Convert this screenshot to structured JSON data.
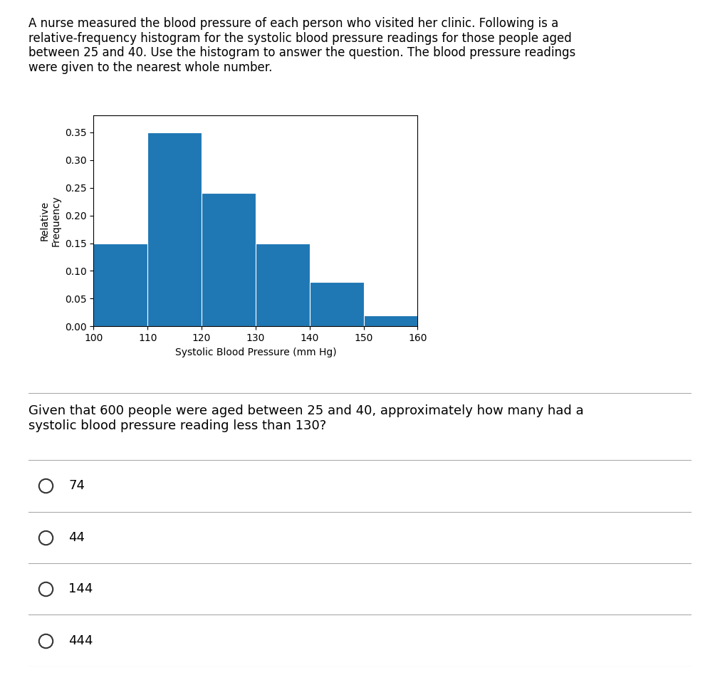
{
  "chart_data": {
    "type": "histogram",
    "title": "A nurse measured the blood pressure of each person who visited her clinic. Following is a\nrelative-frequency histogram for the systolic blood pressure readings for those people aged\nbetween 25 and 40. Use the histogram to answer the question. The blood pressure readings\nwere given to the nearest whole number.",
    "annotations": [
      "Given that 600 people were aged between 25 and 40, approximately how many had a\nsystolic blood pressure reading less than 130?",
      "74",
      "44",
      "144",
      "444"
    ],
    "bins": [
      100,
      110,
      120,
      130,
      140,
      150,
      160
    ],
    "values": [
      0.15,
      0.35,
      0.24,
      0.15,
      0.08,
      0.02
    ],
    "x_label": "Systolic Blood Pressure (mm Hg)",
    "y_label": "Relative\nFrequency",
    "xlim": [
      100,
      160
    ],
    "xticks": [
      100,
      110,
      120,
      130,
      140,
      150,
      160
    ],
    "ylim": [
      0,
      0.38
    ],
    "yticks": [
      {
        "value": 0.0,
        "label": "0.00"
      },
      {
        "value": 0.05,
        "label": "0.05"
      },
      {
        "value": 0.1,
        "label": "0.10"
      },
      {
        "value": 0.15,
        "label": "0.15"
      },
      {
        "value": 0.2,
        "label": "0.20"
      },
      {
        "value": 0.25,
        "label": "0.25"
      },
      {
        "value": 0.3,
        "label": "0.30"
      },
      {
        "value": 0.35,
        "label": "0.35"
      }
    ],
    "grid": false
  }
}
